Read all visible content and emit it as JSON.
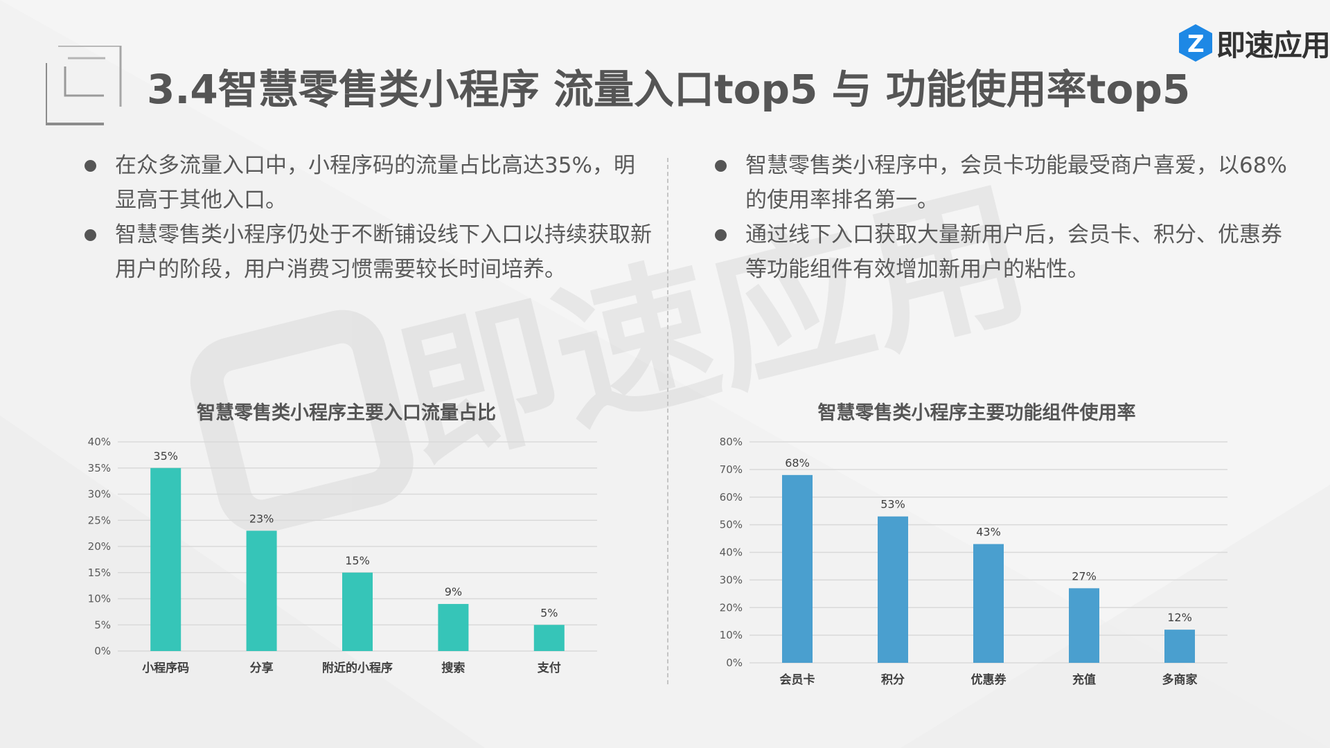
{
  "header": {
    "title": "3.4智慧零售类小程序 流量入口top5 与 功能使用率top5",
    "logo_text": "即速应用"
  },
  "watermark": {
    "text": "即速应用"
  },
  "left_bullets": [
    "在众多流量入口中，小程序码的流量占比高达35%，明显高于其他入口。",
    "智慧零售类小程序仍处于不断铺设线下入口以持续获取新用户的阶段，用户消费习惯需要较长时间培养。"
  ],
  "right_bullets": [
    "智慧零售类小程序中，会员卡功能最受商户喜爱，以68%的使用率排名第一。",
    "通过线下入口获取大量新用户后，会员卡、积分、优惠券等功能组件有效增加新用户的粘性。"
  ],
  "colors": {
    "bar_left": "#36c5b8",
    "bar_right": "#4a9fcf",
    "grid": "#d9d9d9"
  },
  "chart_data": [
    {
      "type": "bar",
      "title": "智慧零售类小程序主要入口流量占比",
      "categories": [
        "小程序码",
        "分享",
        "附近的小程序",
        "搜索",
        "支付"
      ],
      "values": [
        35,
        23,
        15,
        9,
        5
      ],
      "data_labels": [
        "35%",
        "23%",
        "15%",
        "9%",
        "5%"
      ],
      "yticks": [
        "0%",
        "5%",
        "10%",
        "15%",
        "20%",
        "25%",
        "30%",
        "35%",
        "40%"
      ],
      "ylim": [
        0,
        40
      ],
      "xlabel": "",
      "ylabel": "",
      "grid": true
    },
    {
      "type": "bar",
      "title": "智慧零售类小程序主要功能组件使用率",
      "categories": [
        "会员卡",
        "积分",
        "优惠券",
        "充值",
        "多商家"
      ],
      "values": [
        68,
        53,
        43,
        27,
        12
      ],
      "data_labels": [
        "68%",
        "53%",
        "43%",
        "27%",
        "12%"
      ],
      "yticks": [
        "0%",
        "10%",
        "20%",
        "30%",
        "40%",
        "50%",
        "60%",
        "70%",
        "80%"
      ],
      "ylim": [
        0,
        80
      ],
      "xlabel": "",
      "ylabel": "",
      "grid": true
    }
  ]
}
